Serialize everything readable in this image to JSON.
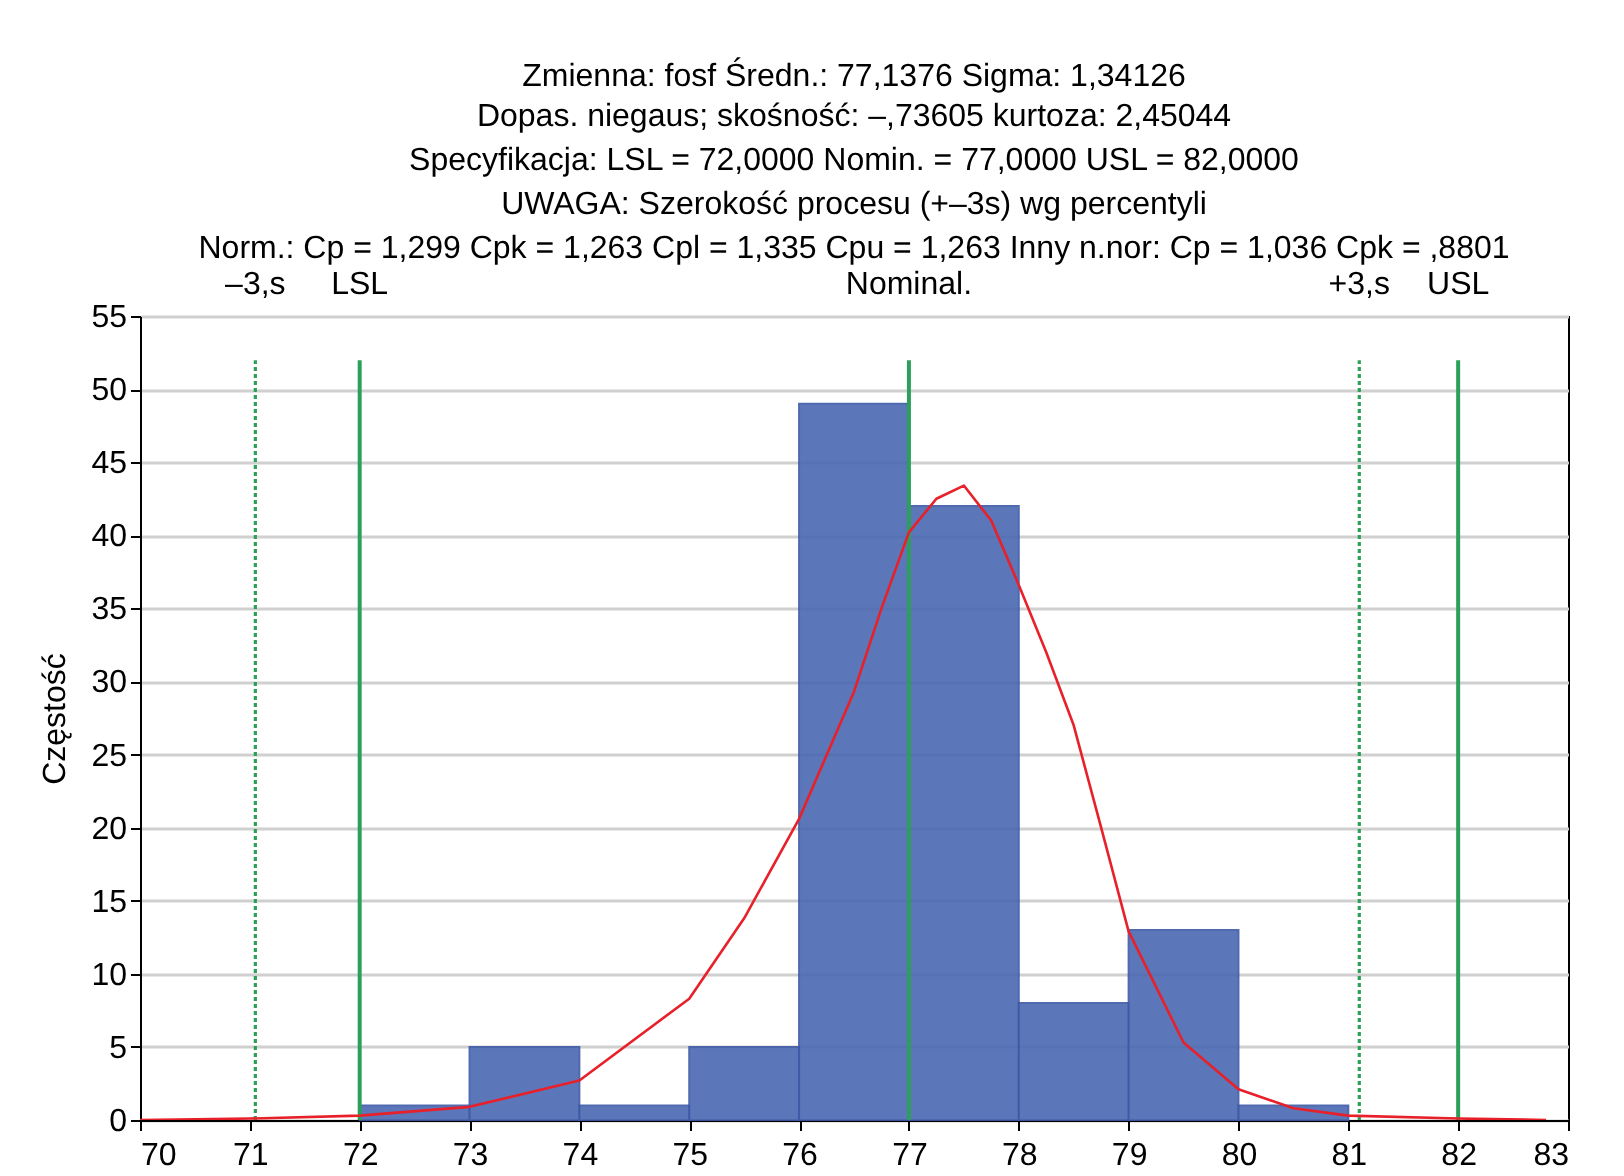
{
  "chart_data": {
    "type": "histogram",
    "title": "Zmienna: fosf     Średn.: 77,1376    Sigma: 1,34126",
    "subtitle": "Dopas. niegaus; skośność: –,73605        kurtoza:  2,45044\nSpecyfikacja: LSL =  72,0000 Nomin. = 77,0000 USL = 82,0000\nUWAGA: Szerokość procesu (+–3s) wg percentyli\nNorm.:  Cp = 1,299 Cpk = 1,263 Cpl = 1,335 Cpu = 1,263 Inny n.nor: Cp = 1,036 Cpk = ,8801",
    "ylabel": "Częstość",
    "bins": [
      72,
      73,
      74,
      75,
      76,
      77,
      78,
      79,
      80,
      81
    ],
    "values": [
      1,
      5,
      1,
      5,
      49,
      42,
      8,
      13,
      1
    ],
    "color": "#4a68b2",
    "series": [
      {
        "type": "line",
        "color": "#e8202a",
        "x": [
          70,
          71,
          72,
          73,
          74,
          75,
          75.5,
          76,
          76.5,
          76.75,
          77,
          77.25,
          77.5,
          77.75,
          78,
          78.25,
          78.5,
          78.75,
          79,
          79.5,
          80,
          80.5,
          81,
          82,
          82.8
        ],
        "values": [
          0,
          0.1,
          0.3,
          0.9,
          2.7,
          8.3,
          13.8,
          20.6,
          29.3,
          35,
          40.2,
          42.5,
          43.4,
          41,
          36.6,
          32,
          27,
          20,
          12.9,
          5.3,
          2.1,
          0.8,
          0.3,
          0.1,
          0
        ]
      }
    ],
    "xlim": [
      70,
      83
    ],
    "xticks": [
      70,
      71,
      72,
      73,
      74,
      75,
      76,
      77,
      78,
      79,
      80,
      81,
      82,
      83
    ],
    "ylim": [
      0,
      55
    ],
    "yticks": [
      0,
      5,
      10,
      15,
      20,
      25,
      30,
      35,
      40,
      45,
      50,
      55
    ],
    "grid": "y",
    "ref_lines": [
      {
        "axis": "x",
        "value": 71.05,
        "label": "–3,s",
        "color": "#2ca05a",
        "line_style": "dotted"
      },
      {
        "axis": "x",
        "value": 72,
        "label": "LSL",
        "color": "#2ca05a",
        "line_style": "solid"
      },
      {
        "axis": "x",
        "value": 77,
        "label": "Nominal.",
        "color": "#2ca05a",
        "line_style": "solid"
      },
      {
        "axis": "x",
        "value": 81.1,
        "label": "+3,s",
        "color": "#2ca05a",
        "line_style": "dotted"
      },
      {
        "axis": "x",
        "value": 82,
        "label": "USL",
        "color": "#2ca05a",
        "line_style": "solid"
      }
    ]
  }
}
